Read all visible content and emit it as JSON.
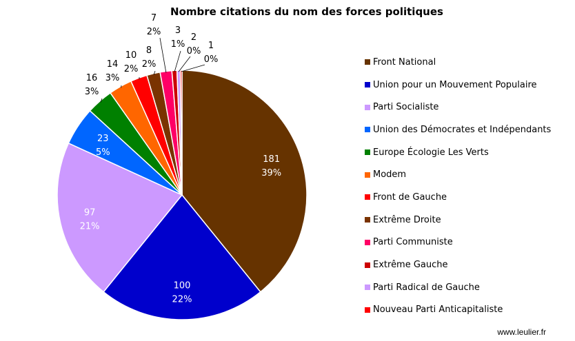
{
  "chart_data": {
    "type": "pie",
    "title": "Nombre citations du nom des forces politiques",
    "slices": [
      {
        "label": "Front National",
        "value": 181,
        "percent": "39%",
        "color": "#663300"
      },
      {
        "label": "Union pour un Mouvement Populaire",
        "value": 100,
        "percent": "22%",
        "color": "#0000cc"
      },
      {
        "label": "Parti Socialiste",
        "value": 97,
        "percent": "21%",
        "color": "#cc99ff"
      },
      {
        "label": "Union des Démocrates et Indépendants",
        "value": 23,
        "percent": "5%",
        "color": "#0066ff"
      },
      {
        "label": "Europe Écologie Les Verts",
        "value": 16,
        "percent": "3%",
        "color": "#008000"
      },
      {
        "label": "Modem",
        "value": 14,
        "percent": "3%",
        "color": "#ff6600"
      },
      {
        "label": "Front de Gauche",
        "value": 10,
        "percent": "2%",
        "color": "#ff0000"
      },
      {
        "label": "Extrême Droite",
        "value": 8,
        "percent": "2%",
        "color": "#7a3300"
      },
      {
        "label": "Parti Communiste",
        "value": 7,
        "percent": "2%",
        "color": "#ff0066"
      },
      {
        "label": "Extrême Gauche",
        "value": 3,
        "percent": "1%",
        "color": "#cc0000"
      },
      {
        "label": "Parti Radical de Gauche",
        "value": 2,
        "percent": "0%",
        "color": "#cc99ff"
      },
      {
        "label": "Nouveau Parti Anticapitaliste",
        "value": 1,
        "percent": "0%",
        "color": "#ff0000"
      }
    ],
    "legend_position": "right"
  },
  "footer": {
    "source": "www.leulier.fr"
  }
}
